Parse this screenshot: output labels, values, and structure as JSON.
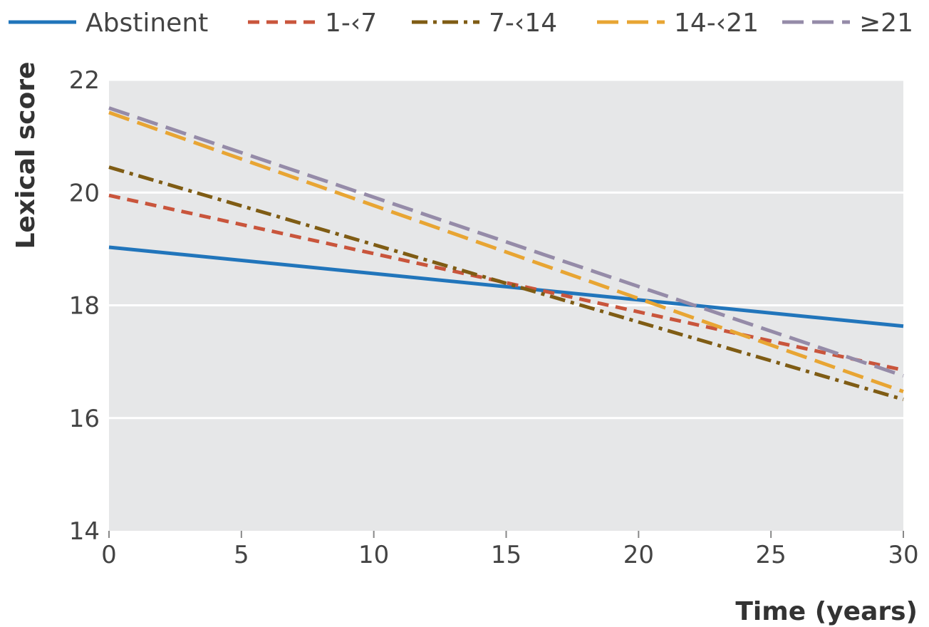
{
  "chart_data": {
    "type": "line",
    "xlabel": "Time (years)",
    "ylabel": "Lexical score",
    "xlim": [
      0,
      30
    ],
    "ylim": [
      14,
      22
    ],
    "x_ticks": [
      "0",
      "5",
      "10",
      "15",
      "20",
      "25",
      "30"
    ],
    "y_ticks": [
      "14",
      "16",
      "18",
      "20",
      "22"
    ],
    "grid": "horizontal",
    "legend_position": "top",
    "x": [
      0,
      30
    ],
    "series": [
      {
        "name": "Abstinent",
        "values": [
          19.03,
          17.63
        ],
        "color": "#2175bb",
        "style": "solid"
      },
      {
        "name": "1-‹7",
        "values": [
          19.95,
          16.85
        ],
        "color": "#c9553c",
        "style": "short-dash"
      },
      {
        "name": "7-‹14",
        "values": [
          20.45,
          16.33
        ],
        "color": "#7f5c14",
        "style": "dash-dot"
      },
      {
        "name": "14-‹21",
        "values": [
          21.42,
          16.47
        ],
        "color": "#e8a533",
        "style": "long-dash"
      },
      {
        "name": "≥21",
        "values": [
          21.5,
          16.75
        ],
        "color": "#958ba8",
        "style": "long-dash"
      }
    ]
  },
  "colors": {
    "plot_background": "#e6e7e8",
    "gridline": "#ffffff",
    "text": "#444444"
  }
}
